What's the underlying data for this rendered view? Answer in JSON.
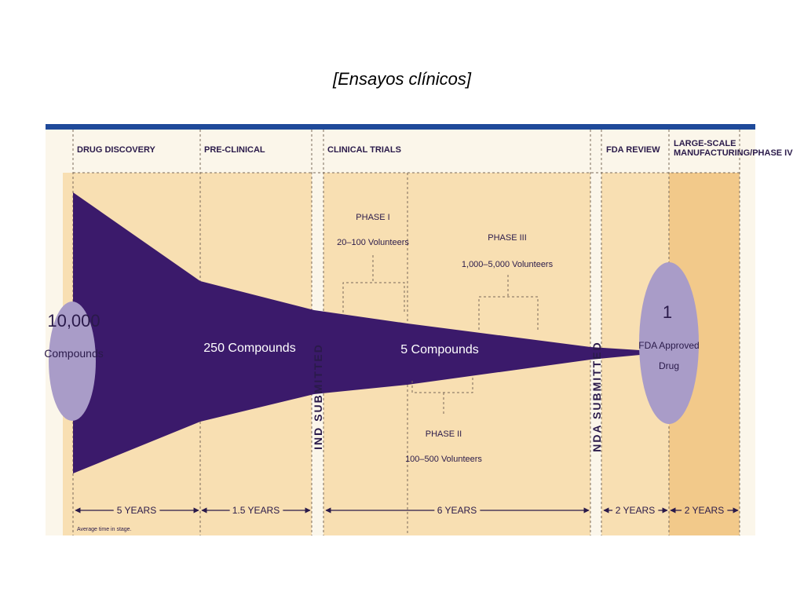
{
  "title": "[Ensayos clínicos]",
  "stages": [
    "DRUG DISCOVERY",
    "PRE-CLINICAL",
    "CLINICAL TRIALS",
    "FDA REVIEW",
    "LARGE-SCALE",
    "MANUFACTURING/PHASE IV"
  ],
  "start": {
    "number": "10,000",
    "label": "Compounds"
  },
  "preclinical_count": "250 Compounds",
  "clinical_count": "5 Compounds",
  "end": {
    "number": "1",
    "line1": "FDA Approved",
    "line2": "Drug"
  },
  "phases": [
    {
      "name": "PHASE I",
      "volunteers": "20–100 Volunteers"
    },
    {
      "name": "PHASE II",
      "volunteers": "100–500 Volunteers"
    },
    {
      "name": "PHASE III",
      "volunteers": "1,000–5,000 Volunteers"
    }
  ],
  "milestones": [
    "IND SUBMITTED",
    "NDA SUBMITTED"
  ],
  "durations": [
    "5 YEARS",
    "1.5 YEARS",
    "6 YEARS",
    "2 YEARS",
    "2 YEARS"
  ],
  "footnote": "Average time in stage."
}
